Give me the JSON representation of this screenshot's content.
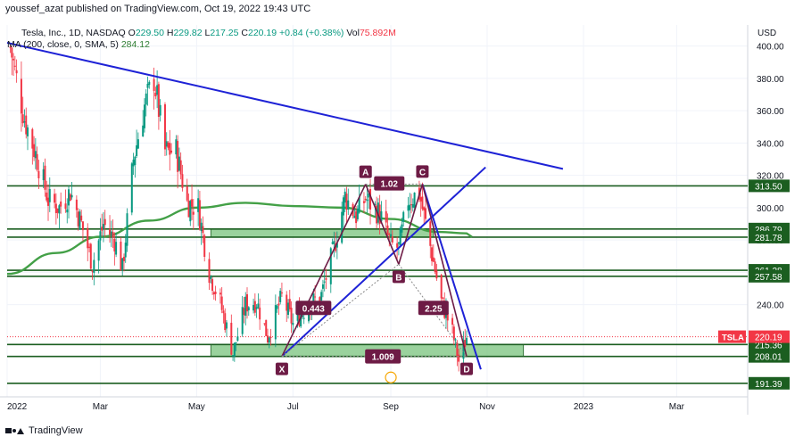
{
  "header": {
    "text": "youssef_azat published on TradingView.com, Oct 19, 2022 19:43 UTC"
  },
  "legend": {
    "symbol": "Tesla, Inc., 1D, NASDAQ",
    "o_label": "O",
    "o": "229.50",
    "h_label": "H",
    "h": "229.82",
    "l_label": "L",
    "l": "217.25",
    "c_label": "C",
    "c": "220.19",
    "change": "+0.84 (+0.38%)",
    "vol_label": "Vol",
    "vol": "75.892M",
    "ma_label": "MA (200, close, 0, SMA, 5)",
    "ma_value": "284.12"
  },
  "currency": "USD",
  "footer": {
    "brand": "TradingView"
  },
  "colors": {
    "up": "#089981",
    "down": "#f23645",
    "trendline": "#1e22d6",
    "level": "#1b5e20",
    "ma": "#43a047",
    "zone": "#81c784",
    "pattern": "#6d1b45"
  },
  "chart_data": {
    "type": "candlestick",
    "title": "Tesla, Inc., 1D, NASDAQ",
    "ylabel": "USD",
    "ylim": [
      183,
      413
    ],
    "price_axis_ticks": [
      240,
      260,
      280,
      300,
      320,
      340,
      360,
      380,
      400
    ],
    "price_axis_labels": [
      "240.00",
      "260.00",
      "280.00",
      "300.00",
      "320.00",
      "340.00",
      "360.00",
      "380.00",
      "400.00"
    ],
    "time_axis_labels": [
      "2022",
      "Mar",
      "May",
      "Jul",
      "Sep",
      "Nov",
      "2023",
      "Mar"
    ],
    "level_tags": [
      {
        "label": "313.50",
        "value": 313.5
      },
      {
        "label": "286.79",
        "value": 286.79
      },
      {
        "label": "281.78",
        "value": 281.78
      },
      {
        "label": "261.28",
        "value": 261.28
      },
      {
        "label": "257.58",
        "value": 257.58
      },
      {
        "label": "215.36",
        "value": 215.36
      },
      {
        "label": "208.01",
        "value": 208.01
      },
      {
        "label": "191.39",
        "value": 191.39
      }
    ],
    "last_price": {
      "symbol": "TSLA",
      "label": "220.19",
      "value": 220.19
    },
    "harmonic_points": [
      {
        "label": "X",
        "date": "2022-06-24",
        "price": 208.0
      },
      {
        "label": "A",
        "date": "2022-08-16",
        "price": 314.5
      },
      {
        "label": "B",
        "date": "2022-09-06",
        "price": 265.0
      },
      {
        "label": "C",
        "date": "2022-09-21",
        "price": 314.6
      },
      {
        "label": "D",
        "date": "2022-10-19",
        "price": 208.0
      }
    ],
    "ratio_labels": [
      {
        "label": "0.443",
        "date": "2022-07-14",
        "price": 238
      },
      {
        "label": "1.02",
        "date": "2022-08-31",
        "price": 315
      },
      {
        "label": "2.25",
        "date": "2022-09-28",
        "price": 238
      },
      {
        "label": "1.009",
        "date": "2022-08-27",
        "price": 208
      }
    ],
    "trendlines": [
      {
        "from": {
          "date": "2022-01-01",
          "price": 402
        },
        "to": {
          "date": "2022-12-19",
          "price": 324
        }
      },
      {
        "from": {
          "date": "2022-06-24",
          "price": 208
        },
        "to": {
          "date": "2022-10-31",
          "price": 325
        }
      },
      {
        "from": {
          "date": "2022-09-21",
          "price": 314.6
        },
        "to": {
          "date": "2022-10-28",
          "price": 200
        }
      }
    ],
    "zones": [
      {
        "from": "2022-05-10",
        "to": "2022-11-24",
        "low": 208.0,
        "high": 215.36
      },
      {
        "from": "2022-05-10",
        "to": "2022-09-28",
        "low": 281.78,
        "high": 286.79
      }
    ],
    "ma200": [
      {
        "date": "2022-01-01",
        "price": 259
      },
      {
        "date": "2022-02-01",
        "price": 272
      },
      {
        "date": "2022-03-01",
        "price": 282
      },
      {
        "date": "2022-04-01",
        "price": 292
      },
      {
        "date": "2022-05-01",
        "price": 300
      },
      {
        "date": "2022-06-01",
        "price": 303
      },
      {
        "date": "2022-07-01",
        "price": 301
      },
      {
        "date": "2022-08-01",
        "price": 300
      },
      {
        "date": "2022-09-01",
        "price": 293
      },
      {
        "date": "2022-10-01",
        "price": 285
      },
      {
        "date": "2022-10-19",
        "price": 284.12
      }
    ],
    "price_path": [
      {
        "date": "2022-01-03",
        "price": 399
      },
      {
        "date": "2022-01-12",
        "price": 355
      },
      {
        "date": "2022-01-20",
        "price": 330
      },
      {
        "date": "2022-01-27",
        "price": 305
      },
      {
        "date": "2022-02-03",
        "price": 300
      },
      {
        "date": "2022-02-10",
        "price": 310
      },
      {
        "date": "2022-02-17",
        "price": 290
      },
      {
        "date": "2022-02-24",
        "price": 265
      },
      {
        "date": "2022-03-03",
        "price": 290
      },
      {
        "date": "2022-03-10",
        "price": 280
      },
      {
        "date": "2022-03-15",
        "price": 262
      },
      {
        "date": "2022-03-22",
        "price": 330
      },
      {
        "date": "2022-03-29",
        "price": 363
      },
      {
        "date": "2022-04-04",
        "price": 380
      },
      {
        "date": "2022-04-11",
        "price": 335
      },
      {
        "date": "2022-04-18",
        "price": 335
      },
      {
        "date": "2022-04-25",
        "price": 303
      },
      {
        "date": "2022-05-02",
        "price": 300
      },
      {
        "date": "2022-05-09",
        "price": 260
      },
      {
        "date": "2022-05-16",
        "price": 241
      },
      {
        "date": "2022-05-24",
        "price": 210
      },
      {
        "date": "2022-06-01",
        "price": 240
      },
      {
        "date": "2022-06-08",
        "price": 242
      },
      {
        "date": "2022-06-15",
        "price": 220
      },
      {
        "date": "2022-06-24",
        "price": 245
      },
      {
        "date": "2022-07-01",
        "price": 228
      },
      {
        "date": "2022-07-11",
        "price": 240
      },
      {
        "date": "2022-07-19",
        "price": 246
      },
      {
        "date": "2022-07-27",
        "price": 275
      },
      {
        "date": "2022-08-03",
        "price": 307
      },
      {
        "date": "2022-08-10",
        "price": 295
      },
      {
        "date": "2022-08-16",
        "price": 306
      },
      {
        "date": "2022-08-25",
        "price": 296
      },
      {
        "date": "2022-09-01",
        "price": 277
      },
      {
        "date": "2022-09-06",
        "price": 275
      },
      {
        "date": "2022-09-12",
        "price": 305
      },
      {
        "date": "2022-09-19",
        "price": 309
      },
      {
        "date": "2022-09-26",
        "price": 276
      },
      {
        "date": "2022-10-03",
        "price": 242
      },
      {
        "date": "2022-10-10",
        "price": 223
      },
      {
        "date": "2022-10-14",
        "price": 205
      },
      {
        "date": "2022-10-19",
        "price": 220
      }
    ]
  }
}
